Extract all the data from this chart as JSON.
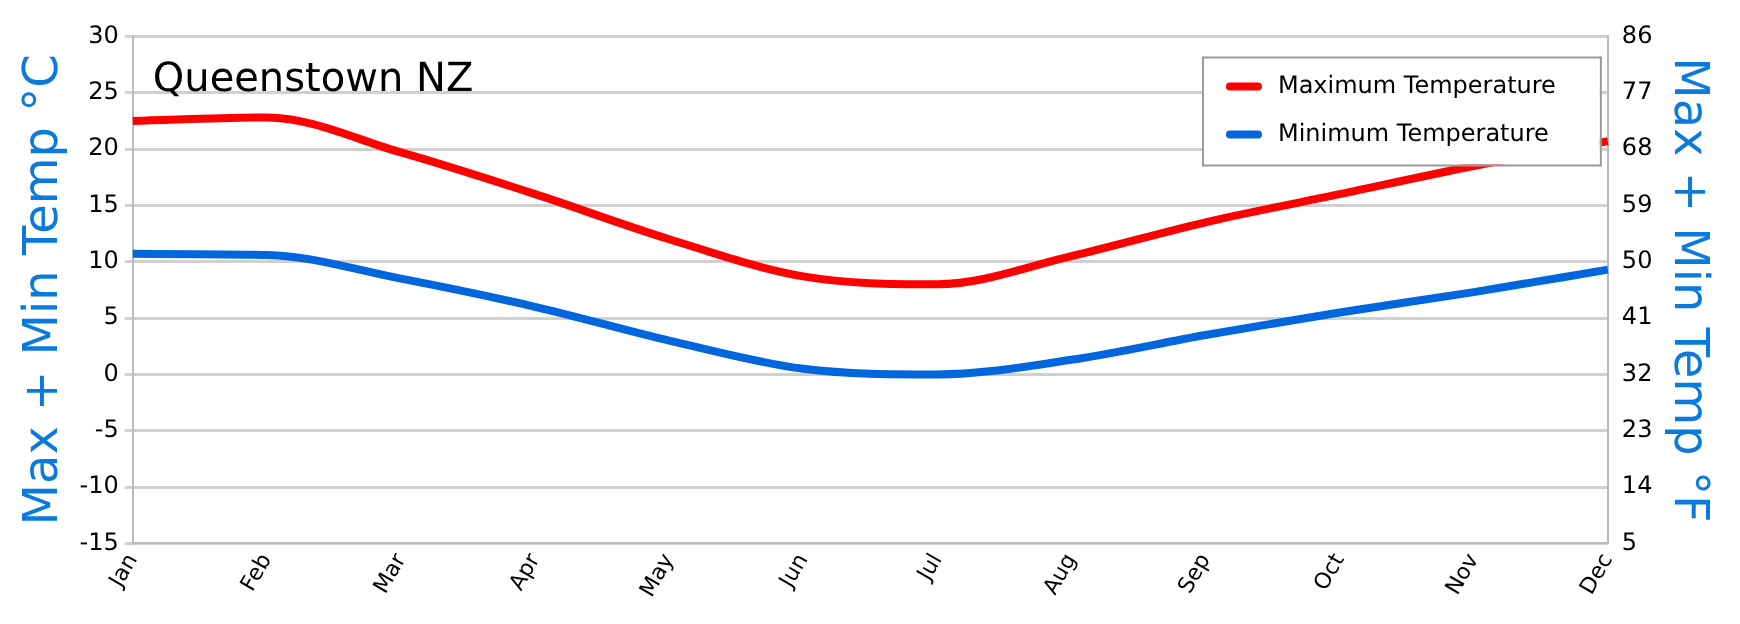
{
  "chart_data": {
    "type": "line",
    "title": "Queenstown NZ",
    "ylabel": "Max + Min Temp °C",
    "y2label": "Max + Min Temp °F",
    "categories": [
      "Jan",
      "Feb",
      "Mar",
      "Apr",
      "May",
      "Jun",
      "Jul",
      "Aug",
      "Sep",
      "Oct",
      "Nov",
      "Dec"
    ],
    "series": [
      {
        "name": "Maximum Temperature",
        "color": "#ff0000",
        "values": [
          22.5,
          22.8,
          19.7,
          16,
          12,
          8.7,
          8,
          10.5,
          13.5,
          16,
          18.5,
          20.7
        ]
      },
      {
        "name": "Minimum Temperature",
        "color": "#0066dd",
        "values": [
          10.7,
          10.6,
          8.5,
          6,
          3,
          0.5,
          0,
          1.3,
          3.5,
          5.5,
          7.3,
          9.3
        ]
      }
    ],
    "ylim": [
      -15,
      30
    ],
    "yticks": [
      -15,
      -10,
      -5,
      0,
      5,
      10,
      15,
      20,
      25,
      30
    ],
    "y2lim": [
      5,
      86
    ],
    "y2ticks": [
      5,
      14,
      23,
      32,
      41,
      50,
      59,
      68,
      77,
      86
    ],
    "grid": "y",
    "legend": "top right",
    "marker": "none",
    "line_style": "solid"
  }
}
